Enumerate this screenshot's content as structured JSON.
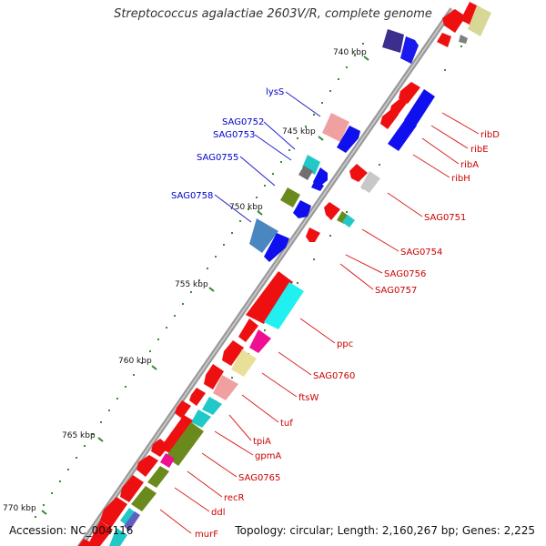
{
  "title": "Streptococcus agalactiae 2603V/R, complete genome",
  "footer": {
    "accession": "Accession: NC_004116",
    "stats": "Topology: circular; Length: 2,160,267 bp; Genes: 2,225"
  },
  "colors": {
    "forward_label": "#0000cc",
    "reverse_label": "#cc0000",
    "backbone": "#8c8c8c",
    "tick": "#2e8b2e"
  },
  "ticks": [
    {
      "label": "740 kbp"
    },
    {
      "label": "745 kbp"
    },
    {
      "label": "750 kbp"
    },
    {
      "label": "755 kbp"
    },
    {
      "label": "760 kbp"
    },
    {
      "label": "765 kbp"
    },
    {
      "label": "770 kbp"
    }
  ],
  "forward_labels": [
    {
      "name": "lysS"
    },
    {
      "name": "SAG0752"
    },
    {
      "name": "SAG0753"
    },
    {
      "name": "SAG0755"
    },
    {
      "name": "SAG0758"
    }
  ],
  "reverse_labels": [
    {
      "name": "ribD"
    },
    {
      "name": "ribE"
    },
    {
      "name": "ribA"
    },
    {
      "name": "ribH"
    },
    {
      "name": "SAG0751"
    },
    {
      "name": "SAG0754"
    },
    {
      "name": "SAG0756"
    },
    {
      "name": "SAG0757"
    },
    {
      "name": "ppc"
    },
    {
      "name": "SAG0760"
    },
    {
      "name": "ftsW"
    },
    {
      "name": "tuf"
    },
    {
      "name": "tpiA"
    },
    {
      "name": "gpmA"
    },
    {
      "name": "SAG0765"
    },
    {
      "name": "recR"
    },
    {
      "name": "ddl"
    },
    {
      "name": "murF"
    }
  ]
}
